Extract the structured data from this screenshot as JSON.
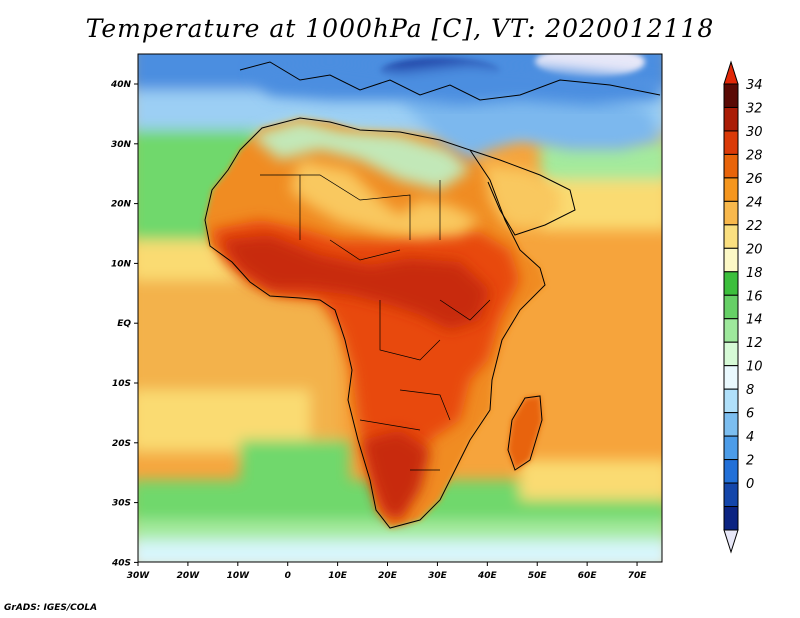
{
  "title": "Temperature at 1000hPa [C], VT: 2020012118",
  "credit": "GrADS: IGES/COLA",
  "x_axis_labels": [
    "30W",
    "20W",
    "10W",
    "0",
    "10E",
    "20E",
    "30E",
    "40E",
    "50E",
    "60E",
    "70E"
  ],
  "y_axis_labels": [
    "40N",
    "30N",
    "20N",
    "10N",
    "EQ",
    "10S",
    "20S",
    "30S",
    "40S"
  ],
  "colorbar": {
    "labels": [
      "34",
      "32",
      "30",
      "28",
      "26",
      "24",
      "22",
      "20",
      "18",
      "16",
      "14",
      "12",
      "10",
      "8",
      "6",
      "4",
      "2",
      "0"
    ],
    "colors": [
      "#5a0a05",
      "#aa1c06",
      "#da3a08",
      "#e8640a",
      "#f5961e",
      "#f8b84c",
      "#fadf80",
      "#fcf8c6",
      "#3cbf3c",
      "#66d066",
      "#9ee89c",
      "#d6fad6",
      "#eaf9fe",
      "#b0e0fa",
      "#7cbef0",
      "#4c9ce8",
      "#2270d8",
      "#1446aa",
      "#0c2482"
    ]
  },
  "map": {
    "ocean_colors": {
      "warm": "#f6a43c",
      "warm2": "#f3b24c",
      "yellow": "#fadb72",
      "green": "#6fd86c",
      "lightgreen": "#a4ea9c",
      "palegreen": "#d4f8cc",
      "cyan": "#d8f6fc",
      "cool": "#9ccff4",
      "blue": "#4c8ee0",
      "deepblue": "#1c3ea0",
      "white": "#e8e8f8"
    },
    "land_colors": {
      "hot": "#e8480e",
      "veryhot": "#c82a08",
      "warm": "#f08c24",
      "mild": "#f9c85e",
      "cool": "#c2e8b8",
      "cold": "#7cb8ee"
    }
  }
}
